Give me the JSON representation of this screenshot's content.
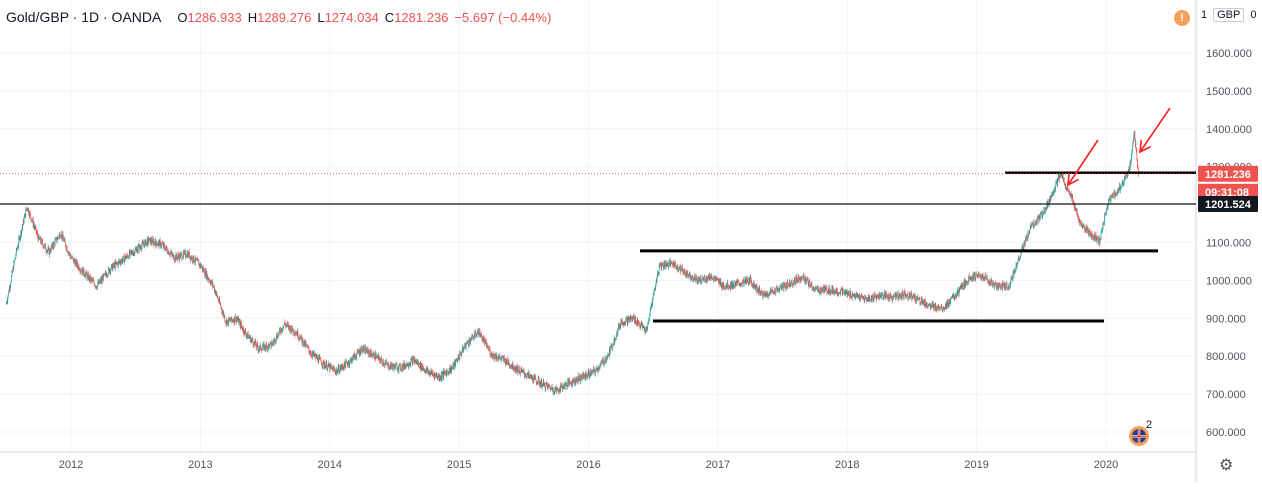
{
  "legend": {
    "symbol": "Gold/GBP · 1D · OANDA",
    "open_label": "O",
    "open": "1286.933",
    "high_label": "H",
    "high": "1289.276",
    "low_label": "L",
    "low": "1274.034",
    "close_label": "C",
    "close": "1281.236",
    "change": "−5.697 (−0.44%)"
  },
  "currency": {
    "scale": "1",
    "code": "GBP",
    "extra": "0"
  },
  "price_tags": {
    "last_price": "1281.236",
    "countdown": "09:31:08",
    "crosshair_level": "1201.524"
  },
  "badge_count": "2",
  "colors": {
    "up": "#26a69a",
    "down": "#ef5350",
    "accent": "#f5a05a",
    "grid": "#f0f3fa"
  },
  "icons": [
    "alert-icon",
    "gear-icon",
    "flag-icon"
  ],
  "chart_data": {
    "type": "candlestick",
    "title": "Gold/GBP · 1D · OANDA",
    "x_ticks": [
      "2012",
      "2013",
      "2014",
      "2015",
      "2016",
      "2017",
      "2018",
      "2019",
      "2020"
    ],
    "y_ticks": [
      "600.000",
      "700.000",
      "800.000",
      "900.000",
      "1000.000",
      "1100.000",
      "1200.000",
      "1300.000",
      "1400.000",
      "1500.000",
      "1600.000"
    ],
    "ylim": [
      575,
      1700
    ],
    "xlim": [
      2011.48,
      2020.69
    ],
    "grid": true,
    "series": [
      {
        "name": "Gold/GBP",
        "x": [
          2011.5,
          2011.58,
          2011.66,
          2011.75,
          2011.83,
          2011.92,
          2012.0,
          2012.1,
          2012.2,
          2012.3,
          2012.4,
          2012.5,
          2012.6,
          2012.7,
          2012.8,
          2012.9,
          2013.0,
          2013.1,
          2013.2,
          2013.28,
          2013.35,
          2013.45,
          2013.55,
          2013.65,
          2013.75,
          2013.85,
          2013.95,
          2014.05,
          2014.15,
          2014.25,
          2014.35,
          2014.45,
          2014.55,
          2014.65,
          2014.75,
          2014.85,
          2014.95,
          2015.05,
          2015.15,
          2015.25,
          2015.35,
          2015.45,
          2015.55,
          2015.65,
          2015.75,
          2015.85,
          2015.95,
          2016.05,
          2016.15,
          2016.25,
          2016.35,
          2016.45,
          2016.5,
          2016.55,
          2016.65,
          2016.75,
          2016.85,
          2016.95,
          2017.05,
          2017.15,
          2017.25,
          2017.35,
          2017.45,
          2017.55,
          2017.65,
          2017.75,
          2017.85,
          2017.95,
          2018.05,
          2018.15,
          2018.25,
          2018.35,
          2018.45,
          2018.55,
          2018.65,
          2018.75,
          2018.85,
          2018.95,
          2019.05,
          2019.15,
          2019.25,
          2019.35,
          2019.42,
          2019.5,
          2019.58,
          2019.65,
          2019.72,
          2019.8,
          2019.88,
          2019.95,
          2020.02,
          2020.1,
          2020.18,
          2020.22,
          2020.25
        ],
        "values": [
          940,
          1080,
          1195,
          1110,
          1075,
          1125,
          1060,
          1020,
          985,
          1030,
          1055,
          1080,
          1105,
          1095,
          1060,
          1070,
          1040,
          985,
          890,
          900,
          860,
          820,
          830,
          885,
          860,
          810,
          780,
          760,
          785,
          820,
          800,
          775,
          770,
          790,
          760,
          745,
          770,
          830,
          865,
          805,
          790,
          765,
          745,
          725,
          710,
          730,
          745,
          760,
          800,
          890,
          900,
          865,
          960,
          1040,
          1045,
          1020,
          1000,
          1010,
          985,
          990,
          1000,
          960,
          975,
          990,
          1010,
          975,
          975,
          970,
          960,
          950,
          960,
          955,
          965,
          950,
          930,
          930,
          965,
          1010,
          1010,
          985,
          985,
          1080,
          1140,
          1170,
          1225,
          1280,
          1230,
          1150,
          1120,
          1105,
          1210,
          1240,
          1290,
          1390,
          1281
        ]
      }
    ],
    "annotations": [
      "1281.236",
      "09:31:08",
      "1201.524"
    ]
  }
}
